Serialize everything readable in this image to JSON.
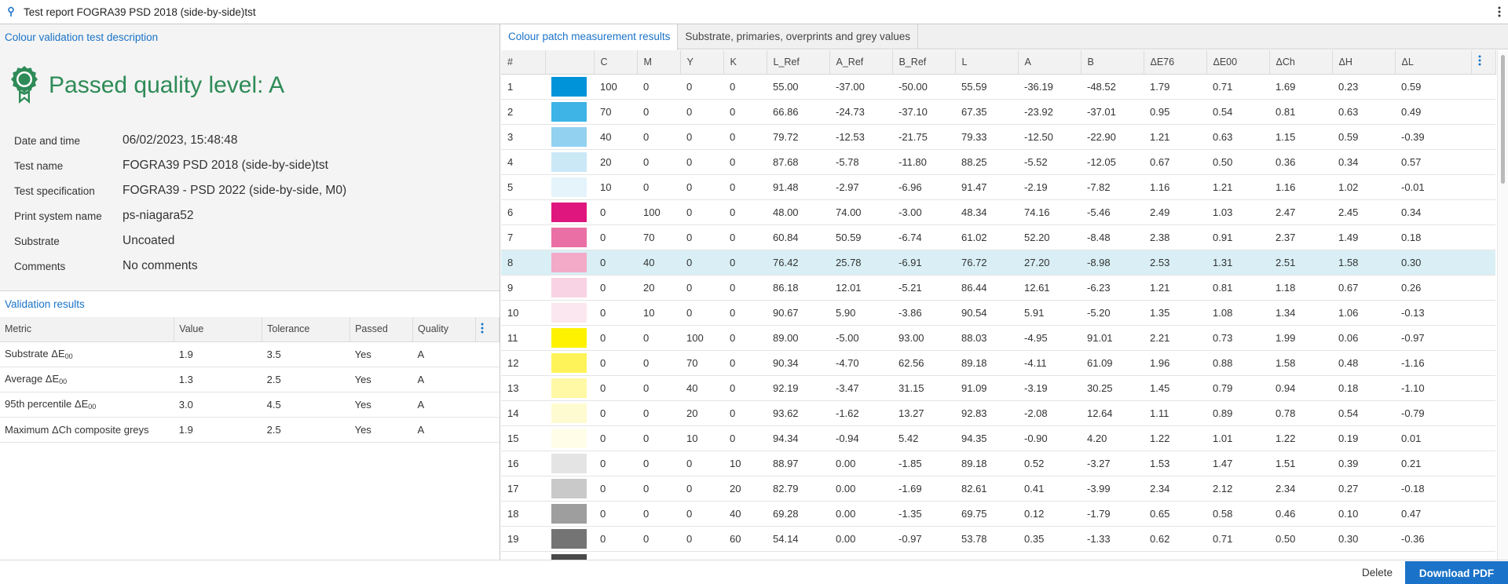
{
  "window": {
    "title": "Test report FOGRA39 PSD 2018 (side-by-side)tst"
  },
  "left": {
    "description_link": "Colour validation test description",
    "quality_heading": "Passed quality level: A",
    "info": [
      {
        "label": "Date and time",
        "value": "06/02/2023, 15:48:48"
      },
      {
        "label": "Test name",
        "value": "FOGRA39 PSD 2018 (side-by-side)tst"
      },
      {
        "label": "Test specification",
        "value": "FOGRA39 - PSD 2022 (side-by-side, M0)"
      },
      {
        "label": "Print system name",
        "value": "ps-niagara52"
      },
      {
        "label": "Substrate",
        "value": "Uncoated"
      },
      {
        "label": "Comments",
        "value": "No comments"
      }
    ],
    "validation_title": "Validation results",
    "validation_headers": [
      "Metric",
      "Value",
      "Tolerance",
      "Passed",
      "Quality"
    ],
    "validation_rows": [
      {
        "metric": "Substrate ΔE",
        "metric_sub": "00",
        "value": "1.9",
        "tolerance": "3.5",
        "passed": "Yes",
        "quality": "A"
      },
      {
        "metric": "Average ΔE",
        "metric_sub": "00",
        "value": "1.3",
        "tolerance": "2.5",
        "passed": "Yes",
        "quality": "A"
      },
      {
        "metric": "95th percentile ΔE",
        "metric_sub": "00",
        "value": "3.0",
        "tolerance": "4.5",
        "passed": "Yes",
        "quality": "A"
      },
      {
        "metric": "Maximum ΔCh composite greys",
        "metric_sub": "",
        "value": "1.9",
        "tolerance": "2.5",
        "passed": "Yes",
        "quality": "A"
      }
    ]
  },
  "right": {
    "tabs": [
      "Colour patch measurement results",
      "Substrate, primaries, overprints and grey values"
    ],
    "active_tab": 0,
    "headers": [
      "#",
      "",
      "C",
      "M",
      "Y",
      "K",
      "L_Ref",
      "A_Ref",
      "B_Ref",
      "L",
      "A",
      "B",
      "ΔE76",
      "ΔE00",
      "ΔCh",
      "ΔH",
      "ΔL"
    ],
    "selected_row": 8,
    "rows": [
      {
        "n": "1",
        "color": "#0093d9",
        "c": "100",
        "m": "0",
        "y": "0",
        "k": "0",
        "lref": "55.00",
        "aref": "-37.00",
        "bref": "-50.00",
        "l": "55.59",
        "a": "-36.19",
        "b": "-48.52",
        "de76": "1.79",
        "de00": "0.71",
        "dch": "1.69",
        "dh": "0.23",
        "dl": "0.59"
      },
      {
        "n": "2",
        "color": "#3db4e5",
        "c": "70",
        "m": "0",
        "y": "0",
        "k": "0",
        "lref": "66.86",
        "aref": "-24.73",
        "bref": "-37.10",
        "l": "67.35",
        "a": "-23.92",
        "b": "-37.01",
        "de76": "0.95",
        "de00": "0.54",
        "dch": "0.81",
        "dh": "0.63",
        "dl": "0.49"
      },
      {
        "n": "3",
        "color": "#93d1f0",
        "c": "40",
        "m": "0",
        "y": "0",
        "k": "0",
        "lref": "79.72",
        "aref": "-12.53",
        "bref": "-21.75",
        "l": "79.33",
        "a": "-12.50",
        "b": "-22.90",
        "de76": "1.21",
        "de00": "0.63",
        "dch": "1.15",
        "dh": "0.59",
        "dl": "-0.39"
      },
      {
        "n": "4",
        "color": "#cbe8f7",
        "c": "20",
        "m": "0",
        "y": "0",
        "k": "0",
        "lref": "87.68",
        "aref": "-5.78",
        "bref": "-11.80",
        "l": "88.25",
        "a": "-5.52",
        "b": "-12.05",
        "de76": "0.67",
        "de00": "0.50",
        "dch": "0.36",
        "dh": "0.34",
        "dl": "0.57"
      },
      {
        "n": "5",
        "color": "#e5f3fb",
        "c": "10",
        "m": "0",
        "y": "0",
        "k": "0",
        "lref": "91.48",
        "aref": "-2.97",
        "bref": "-6.96",
        "l": "91.47",
        "a": "-2.19",
        "b": "-7.82",
        "de76": "1.16",
        "de00": "1.21",
        "dch": "1.16",
        "dh": "1.02",
        "dl": "-0.01"
      },
      {
        "n": "6",
        "color": "#e0167f",
        "c": "0",
        "m": "100",
        "y": "0",
        "k": "0",
        "lref": "48.00",
        "aref": "74.00",
        "bref": "-3.00",
        "l": "48.34",
        "a": "74.16",
        "b": "-5.46",
        "de76": "2.49",
        "de00": "1.03",
        "dch": "2.47",
        "dh": "2.45",
        "dl": "0.34"
      },
      {
        "n": "7",
        "color": "#ea6fa4",
        "c": "0",
        "m": "70",
        "y": "0",
        "k": "0",
        "lref": "60.84",
        "aref": "50.59",
        "bref": "-6.74",
        "l": "61.02",
        "a": "52.20",
        "b": "-8.48",
        "de76": "2.38",
        "de00": "0.91",
        "dch": "2.37",
        "dh": "1.49",
        "dl": "0.18"
      },
      {
        "n": "8",
        "color": "#f2aac8",
        "c": "0",
        "m": "40",
        "y": "0",
        "k": "0",
        "lref": "76.42",
        "aref": "25.78",
        "bref": "-6.91",
        "l": "76.72",
        "a": "27.20",
        "b": "-8.98",
        "de76": "2.53",
        "de00": "1.31",
        "dch": "2.51",
        "dh": "1.58",
        "dl": "0.30"
      },
      {
        "n": "9",
        "color": "#f8d3e3",
        "c": "0",
        "m": "20",
        "y": "0",
        "k": "0",
        "lref": "86.18",
        "aref": "12.01",
        "bref": "-5.21",
        "l": "86.44",
        "a": "12.61",
        "b": "-6.23",
        "de76": "1.21",
        "de00": "0.81",
        "dch": "1.18",
        "dh": "0.67",
        "dl": "0.26"
      },
      {
        "n": "10",
        "color": "#fbe7ef",
        "c": "0",
        "m": "10",
        "y": "0",
        "k": "0",
        "lref": "90.67",
        "aref": "5.90",
        "bref": "-3.86",
        "l": "90.54",
        "a": "5.91",
        "b": "-5.20",
        "de76": "1.35",
        "de00": "1.08",
        "dch": "1.34",
        "dh": "1.06",
        "dl": "-0.13"
      },
      {
        "n": "11",
        "color": "#fff200",
        "c": "0",
        "m": "0",
        "y": "100",
        "k": "0",
        "lref": "89.00",
        "aref": "-5.00",
        "bref": "93.00",
        "l": "88.03",
        "a": "-4.95",
        "b": "91.01",
        "de76": "2.21",
        "de00": "0.73",
        "dch": "1.99",
        "dh": "0.06",
        "dl": "-0.97"
      },
      {
        "n": "12",
        "color": "#fff35a",
        "c": "0",
        "m": "0",
        "y": "70",
        "k": "0",
        "lref": "90.34",
        "aref": "-4.70",
        "bref": "62.56",
        "l": "89.18",
        "a": "-4.11",
        "b": "61.09",
        "de76": "1.96",
        "de00": "0.88",
        "dch": "1.58",
        "dh": "0.48",
        "dl": "-1.16"
      },
      {
        "n": "13",
        "color": "#fff8a5",
        "c": "0",
        "m": "0",
        "y": "40",
        "k": "0",
        "lref": "92.19",
        "aref": "-3.47",
        "bref": "31.15",
        "l": "91.09",
        "a": "-3.19",
        "b": "30.25",
        "de76": "1.45",
        "de00": "0.79",
        "dch": "0.94",
        "dh": "0.18",
        "dl": "-1.10"
      },
      {
        "n": "14",
        "color": "#fffbd1",
        "c": "0",
        "m": "0",
        "y": "20",
        "k": "0",
        "lref": "93.62",
        "aref": "-1.62",
        "bref": "13.27",
        "l": "92.83",
        "a": "-2.08",
        "b": "12.64",
        "de76": "1.11",
        "de00": "0.89",
        "dch": "0.78",
        "dh": "0.54",
        "dl": "-0.79"
      },
      {
        "n": "15",
        "color": "#fffde8",
        "c": "0",
        "m": "0",
        "y": "10",
        "k": "0",
        "lref": "94.34",
        "aref": "-0.94",
        "bref": "5.42",
        "l": "94.35",
        "a": "-0.90",
        "b": "4.20",
        "de76": "1.22",
        "de00": "1.01",
        "dch": "1.22",
        "dh": "0.19",
        "dl": "0.01"
      },
      {
        "n": "16",
        "color": "#e4e4e4",
        "c": "0",
        "m": "0",
        "y": "0",
        "k": "10",
        "lref": "88.97",
        "aref": "0.00",
        "bref": "-1.85",
        "l": "89.18",
        "a": "0.52",
        "b": "-3.27",
        "de76": "1.53",
        "de00": "1.47",
        "dch": "1.51",
        "dh": "0.39",
        "dl": "0.21"
      },
      {
        "n": "17",
        "color": "#c9c9c9",
        "c": "0",
        "m": "0",
        "y": "0",
        "k": "20",
        "lref": "82.79",
        "aref": "0.00",
        "bref": "-1.69",
        "l": "82.61",
        "a": "0.41",
        "b": "-3.99",
        "de76": "2.34",
        "de00": "2.12",
        "dch": "2.34",
        "dh": "0.27",
        "dl": "-0.18"
      },
      {
        "n": "18",
        "color": "#9e9e9e",
        "c": "0",
        "m": "0",
        "y": "0",
        "k": "40",
        "lref": "69.28",
        "aref": "0.00",
        "bref": "-1.35",
        "l": "69.75",
        "a": "0.12",
        "b": "-1.79",
        "de76": "0.65",
        "de00": "0.58",
        "dch": "0.46",
        "dh": "0.10",
        "dl": "0.47"
      },
      {
        "n": "19",
        "color": "#747474",
        "c": "0",
        "m": "0",
        "y": "0",
        "k": "60",
        "lref": "54.14",
        "aref": "0.00",
        "bref": "-0.97",
        "l": "53.78",
        "a": "0.35",
        "b": "-1.33",
        "de76": "0.62",
        "de00": "0.71",
        "dch": "0.50",
        "dh": "0.30",
        "dl": "-0.36"
      },
      {
        "n": "",
        "color": "#4a4a4a",
        "c": "",
        "m": "",
        "y": "",
        "k": "",
        "lref": "",
        "aref": "",
        "bref": "",
        "l": "",
        "a": "",
        "b": "",
        "de76": "",
        "de00": "",
        "dch": "",
        "dh": "",
        "dl": ""
      }
    ]
  },
  "footer": {
    "delete_label": "Delete",
    "download_label": "Download PDF"
  },
  "colors": {
    "accent": "#1a73c8",
    "pass_green": "#2e8b57",
    "selected_row": "#d9eff5"
  },
  "icons": {
    "title": "pin-icon",
    "quality": "award-ribbon-icon",
    "menu": "vertical-ellipsis-icon"
  }
}
